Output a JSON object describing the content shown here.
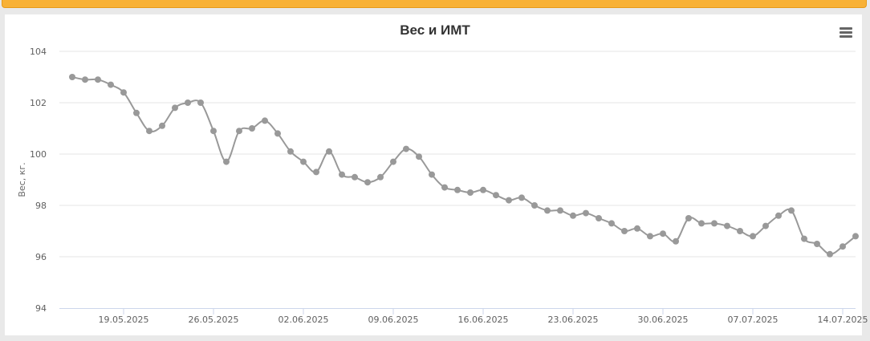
{
  "chart_data": {
    "type": "line",
    "title": "Вес и ИМТ",
    "ylabel": "Вес, кг.",
    "xlabel": "",
    "ylim": [
      94,
      104
    ],
    "y_ticks": [
      94,
      96,
      98,
      100,
      102,
      104
    ],
    "x_ticks": [
      {
        "date": "2025-05-19",
        "label": "19.05.2025"
      },
      {
        "date": "2025-05-26",
        "label": "26.05.2025"
      },
      {
        "date": "2025-06-02",
        "label": "02.06.2025"
      },
      {
        "date": "2025-06-09",
        "label": "09.06.2025"
      },
      {
        "date": "2025-06-16",
        "label": "16.06.2025"
      },
      {
        "date": "2025-06-23",
        "label": "23.06.2025"
      },
      {
        "date": "2025-06-30",
        "label": "30.06.2025"
      },
      {
        "date": "2025-07-07",
        "label": "07.07.2025"
      },
      {
        "date": "2025-07-14",
        "label": "14.07.2025"
      }
    ],
    "xlim": [
      "2025-05-14",
      "2025-07-15"
    ],
    "grid": true,
    "series": [
      {
        "color": "#999999",
        "x": [
          "2025-05-15",
          "2025-05-16",
          "2025-05-17",
          "2025-05-18",
          "2025-05-19",
          "2025-05-20",
          "2025-05-21",
          "2025-05-22",
          "2025-05-23",
          "2025-05-24",
          "2025-05-25",
          "2025-05-26",
          "2025-05-27",
          "2025-05-28",
          "2025-05-29",
          "2025-05-30",
          "2025-05-31",
          "2025-06-01",
          "2025-06-02",
          "2025-06-03",
          "2025-06-04",
          "2025-06-05",
          "2025-06-06",
          "2025-06-07",
          "2025-06-08",
          "2025-06-09",
          "2025-06-10",
          "2025-06-11",
          "2025-06-12",
          "2025-06-13",
          "2025-06-14",
          "2025-06-15",
          "2025-06-16",
          "2025-06-17",
          "2025-06-18",
          "2025-06-19",
          "2025-06-20",
          "2025-06-21",
          "2025-06-22",
          "2025-06-23",
          "2025-06-24",
          "2025-06-25",
          "2025-06-26",
          "2025-06-27",
          "2025-06-28",
          "2025-06-29",
          "2025-06-30",
          "2025-07-01",
          "2025-07-02",
          "2025-07-03",
          "2025-07-04",
          "2025-07-05",
          "2025-07-06",
          "2025-07-07",
          "2025-07-08",
          "2025-07-09",
          "2025-07-10",
          "2025-07-11",
          "2025-07-12",
          "2025-07-13",
          "2025-07-14",
          "2025-07-15"
        ],
        "y": [
          103.0,
          102.9,
          102.9,
          102.7,
          102.4,
          101.6,
          100.9,
          101.1,
          101.8,
          102.0,
          102.0,
          100.9,
          99.7,
          100.9,
          101.0,
          101.3,
          100.8,
          100.1,
          99.7,
          99.3,
          100.1,
          99.2,
          99.1,
          98.9,
          99.1,
          99.7,
          100.2,
          99.9,
          99.2,
          98.7,
          98.6,
          98.5,
          98.6,
          98.4,
          98.2,
          98.3,
          98.0,
          97.8,
          97.8,
          97.6,
          97.7,
          97.5,
          97.3,
          97.0,
          97.1,
          96.8,
          96.9,
          96.6,
          97.5,
          97.3,
          97.3,
          97.2,
          97.0,
          96.8,
          97.2,
          97.6,
          97.8,
          96.7,
          96.5,
          96.1,
          96.4,
          96.8
        ]
      }
    ]
  },
  "toolbar": {
    "menu_icon": "hamburger-menu-icon"
  },
  "colors": {
    "accent_bar": "#f8b136",
    "series_line": "#999999",
    "grid": "#e6e6e6",
    "axis": "#ccd6eb"
  }
}
